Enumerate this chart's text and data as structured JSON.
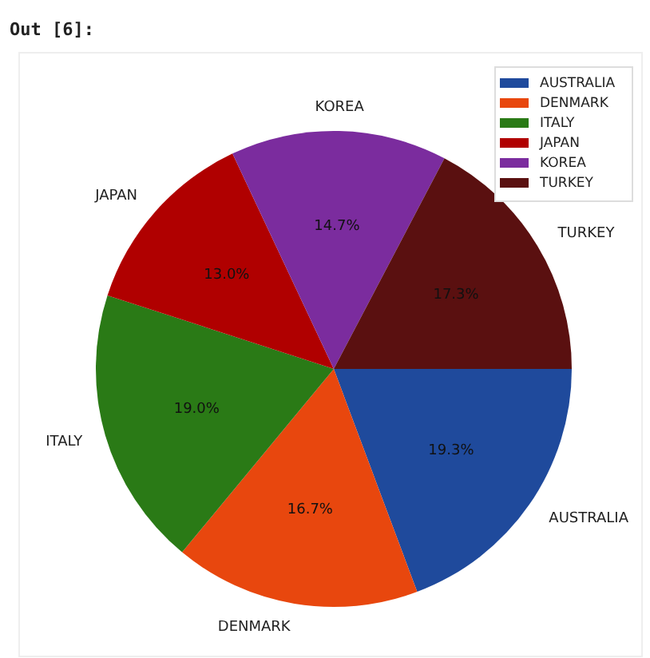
{
  "chart_data": {
    "type": "pie",
    "categories": [
      "AUSTRALIA",
      "DENMARK",
      "ITALY",
      "JAPAN",
      "KOREA",
      "TURKEY"
    ],
    "values": [
      19.3,
      16.7,
      19.0,
      13.0,
      14.7,
      17.3
    ],
    "value_labels": [
      "19.3%",
      "16.7%",
      "19.0%",
      "13.0%",
      "14.7%",
      "17.3%"
    ],
    "colors": [
      "#1f4a9c",
      "#e8470e",
      "#2a7a16",
      "#b00000",
      "#7b2c9e",
      "#5a1010"
    ],
    "legend": "top right",
    "annotations": [
      "Out [6]:"
    ]
  }
}
